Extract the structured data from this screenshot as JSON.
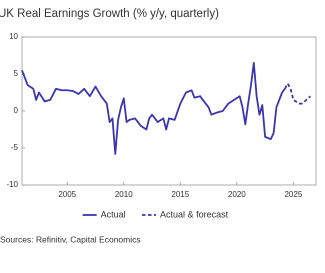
{
  "chart_data": {
    "type": "line",
    "title": "UK Real Earnings Growth (% y/y, quarterly)",
    "source": "Sources: Refinitiv, Capital Economics",
    "xlim": [
      2001,
      2027
    ],
    "xticks": [
      2005,
      2010,
      2015,
      2020,
      2025
    ],
    "ylim": [
      -10,
      10
    ],
    "yticks": [
      -10,
      -5,
      0,
      5,
      10
    ],
    "legend": "bottom",
    "series": [
      {
        "name": "Actual",
        "color": "#3b35b0",
        "style": "solid",
        "x": [
          2001,
          2001.5,
          2002,
          2002.25,
          2002.5,
          2003,
          2003.5,
          2004,
          2004.5,
          2005,
          2005.5,
          2006,
          2006.5,
          2007,
          2007.5,
          2008,
          2008.5,
          2008.75,
          2009,
          2009.25,
          2009.5,
          2009.75,
          2010,
          2010.25,
          2010.5,
          2011,
          2011.5,
          2012,
          2012.25,
          2012.5,
          2013,
          2013.5,
          2013.75,
          2014,
          2014.5,
          2015,
          2015.5,
          2016,
          2016.25,
          2016.75,
          2017,
          2017.5,
          2017.75,
          2018.25,
          2018.75,
          2019.25,
          2019.75,
          2020.25,
          2020.5,
          2020.75,
          2021,
          2021.25,
          2021.5,
          2021.75,
          2022,
          2022.25,
          2022.5,
          2023,
          2023.25,
          2023.5,
          2023.75,
          2024,
          2024.25
        ],
        "values": [
          5.5,
          3.5,
          3.0,
          1.5,
          2.5,
          1.3,
          1.5,
          3.0,
          2.8,
          2.8,
          2.7,
          2.3,
          3.0,
          2.0,
          3.3,
          2.0,
          1.0,
          -1.5,
          -1.0,
          -5.8,
          -1.2,
          0.5,
          1.7,
          -1.5,
          -1.2,
          -1.0,
          -2.0,
          -2.5,
          -1.0,
          -0.5,
          -1.5,
          -1.0,
          -2.5,
          -1.0,
          -1.2,
          1.0,
          2.5,
          2.8,
          1.8,
          2.0,
          1.5,
          0.5,
          -0.5,
          -0.2,
          0,
          1.0,
          1.5,
          2.0,
          0.5,
          -1.8,
          1.0,
          3.5,
          6.5,
          2.0,
          -0.5,
          0.8,
          -3.5,
          -3.8,
          -3.0,
          0.5,
          1.5,
          2.5,
          3.0
        ]
      },
      {
        "name": "Actual & forecast",
        "color": "#3b35b0",
        "style": "dashed",
        "x": [
          2024.25,
          2024.5,
          2024.75,
          2025,
          2025.5,
          2025.75,
          2026,
          2026.5
        ],
        "values": [
          3.0,
          3.7,
          3.0,
          1.5,
          1.0,
          1.0,
          1.3,
          2.0
        ]
      }
    ]
  }
}
